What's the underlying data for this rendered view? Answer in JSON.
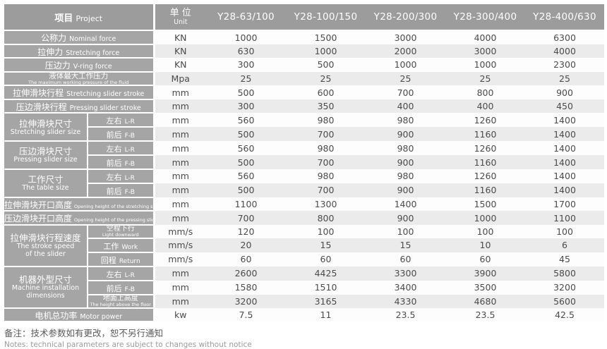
{
  "table": {
    "header": {
      "project_zh": "项目",
      "project_en": "Project",
      "unit_zh": "单 位",
      "unit_en": "Unit",
      "models": [
        "Y28-63/100",
        "Y28-100/150",
        "Y28-200/300",
        "Y28-300/400",
        "Y28-400/630"
      ]
    },
    "rows": [
      {
        "label": {
          "zh": "公称力",
          "en": "Nominal force",
          "style": "inline"
        },
        "unit": "KN",
        "values": [
          "1000",
          "1500",
          "3000",
          "4000",
          "6300"
        ]
      },
      {
        "label": {
          "zh": "拉伸力",
          "en": "Stretching force",
          "style": "inline"
        },
        "unit": "KN",
        "values": [
          "630",
          "1000",
          "2000",
          "3000",
          "4000"
        ]
      },
      {
        "label": {
          "zh": "压边力",
          "en": "V-ring force",
          "style": "inline"
        },
        "unit": "KN",
        "values": [
          "300",
          "500",
          "1000",
          "1000",
          "2300"
        ]
      },
      {
        "label": {
          "zh": "液体最大工作压力",
          "en": "The maximum working pressure of the fluid",
          "style": "stacked"
        },
        "unit": "Mpa",
        "values": [
          "25",
          "25",
          "25",
          "25",
          "25"
        ]
      },
      {
        "label": {
          "zh": "拉伸滑块行程",
          "en": "Stretching slider stroke",
          "style": "inline"
        },
        "unit": "mm",
        "values": [
          "500",
          "600",
          "700",
          "800",
          "900"
        ]
      },
      {
        "label": {
          "zh": "压边滑块行程",
          "en": "Pressing slider stroke",
          "style": "inline"
        },
        "unit": "mm",
        "values": [
          "300",
          "350",
          "400",
          "400",
          "450"
        ]
      },
      {
        "group": {
          "zh": "拉伸滑块尺寸",
          "en_lines": [
            "Stretching slider size"
          ],
          "span": 2
        },
        "sub": {
          "zh": "左右",
          "en": "L-R"
        },
        "unit": "mm",
        "values": [
          "560",
          "980",
          "980",
          "1260",
          "1400"
        ]
      },
      {
        "sub": {
          "zh": "前后",
          "en": "F-B"
        },
        "unit": "mm",
        "values": [
          "500",
          "700",
          "900",
          "1160",
          "1400"
        ]
      },
      {
        "group": {
          "zh": "压边滑块尺寸",
          "en_lines": [
            "Pressing slider size"
          ],
          "span": 2
        },
        "sub": {
          "zh": "左右",
          "en": "L-R"
        },
        "unit": "mm",
        "values": [
          "560",
          "980",
          "980",
          "1260",
          "1400"
        ]
      },
      {
        "sub": {
          "zh": "前后",
          "en": "F-B"
        },
        "unit": "mm",
        "values": [
          "500",
          "700",
          "900",
          "1160",
          "1400"
        ]
      },
      {
        "group": {
          "zh": "工作尺寸",
          "en_lines": [
            "The table size"
          ],
          "span": 2
        },
        "sub": {
          "zh": "左右",
          "en": "L-R"
        },
        "unit": "mm",
        "values": [
          "560",
          "980",
          "980",
          "1260",
          "1400"
        ]
      },
      {
        "sub": {
          "zh": "前后",
          "en": "F-B"
        },
        "unit": "mm",
        "values": [
          "500",
          "700",
          "900",
          "1160",
          "1400"
        ]
      },
      {
        "label": {
          "zh": "拉伸滑块开口高度",
          "en": "Opening height of the stretching slider",
          "style": "inline-small"
        },
        "unit": "mm",
        "values": [
          "1100",
          "1300",
          "1400",
          "1500",
          "1700"
        ]
      },
      {
        "label": {
          "zh": "压边滑块开口高度",
          "en": "Opening height of the pressing slider",
          "style": "inline-small"
        },
        "unit": "mm",
        "values": [
          "700",
          "800",
          "900",
          "1000",
          "1100"
        ]
      },
      {
        "group": {
          "zh": "拉伸滑块行程速度",
          "en_lines": [
            "The stroke speed",
            "of the slider"
          ],
          "span": 3
        },
        "sub": {
          "zh": "空程下行",
          "en": "Light downward",
          "style": "stacked"
        },
        "unit": "mm/s",
        "values": [
          "120",
          "100",
          "100",
          "100",
          "100"
        ]
      },
      {
        "sub": {
          "zh": "工作",
          "en": "Work"
        },
        "unit": "mm/s",
        "values": [
          "20",
          "15",
          "15",
          "10",
          "6"
        ]
      },
      {
        "sub": {
          "zh": "回程",
          "en": "Return"
        },
        "unit": "mm/s",
        "values": [
          "60",
          "60",
          "60",
          "60",
          "45"
        ]
      },
      {
        "group": {
          "zh": "机器外型尺寸",
          "en_lines": [
            "Machine installation",
            "dimensions"
          ],
          "span": 3
        },
        "sub": {
          "zh": "左右",
          "en": "L-R"
        },
        "unit": "mm",
        "values": [
          "2600",
          "4425",
          "3300",
          "3900",
          "5800"
        ]
      },
      {
        "sub": {
          "zh": "前后",
          "en": "F-B"
        },
        "unit": "mm",
        "values": [
          "1580",
          "1510",
          "3400",
          "3500",
          "3200"
        ]
      },
      {
        "sub": {
          "zh": "地面上高度",
          "en": "The height above the floor",
          "style": "stacked"
        },
        "unit": "mm",
        "values": [
          "3200",
          "3165",
          "4330",
          "4680",
          "5600"
        ]
      },
      {
        "label": {
          "zh": "电机总功率",
          "en": "Motor power",
          "style": "inline"
        },
        "unit": "kw",
        "values": [
          "7.5",
          "11",
          "23.5",
          "23.5",
          "42.5"
        ]
      }
    ]
  },
  "footer": {
    "note_zh": "备注：技术参数如有更改，恕不另行通知",
    "note_en": "Notes: technical parameters are subject to changes without notice"
  },
  "colors": {
    "header_bg": "#9c9c9c",
    "label_bg": "#a5a5a5",
    "row_alt_bg": "#ebebeb",
    "value_text": "#4b4b4b"
  }
}
